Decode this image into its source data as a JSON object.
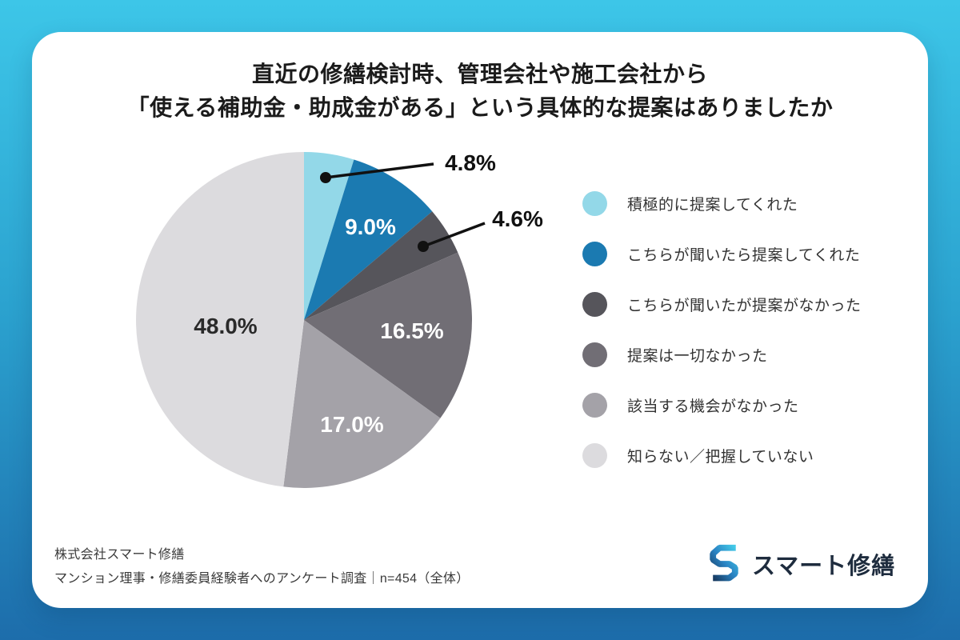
{
  "header": {
    "title_line1": "直近の修繕検討時、管理会社や施工会社から",
    "title_line2": "「使える補助金・助成金がある」という具体的な提案はありましたか"
  },
  "chart_data": {
    "type": "pie",
    "title": "直近の修繕検討時、管理会社や施工会社から「使える補助金・助成金がある」という具体的な提案はありましたか",
    "unit": "%",
    "start_angle_deg": 0,
    "direction": "clockwise",
    "legend_position": "right",
    "slices": [
      {
        "label": "積極的に提案してくれた",
        "value": 4.8,
        "color": "#93d8e8",
        "label_style": "callout-dark"
      },
      {
        "label": "こちらが聞いたら提案してくれた",
        "value": 9.0,
        "color": "#1b7ab1",
        "label_style": "inside-white"
      },
      {
        "label": "こちらが聞いたが提案がなかった",
        "value": 4.6,
        "color": "#56555b",
        "label_style": "callout-dark"
      },
      {
        "label": "提案は一切なかった",
        "value": 16.5,
        "color": "#716e75",
        "label_style": "inside-white"
      },
      {
        "label": "該当する機会がなかった",
        "value": 17.0,
        "color": "#a4a2a8",
        "label_style": "inside-white"
      },
      {
        "label": "知らない／把握していない",
        "value": 48.0,
        "color": "#dcdbde",
        "label_style": "inside-dark"
      }
    ]
  },
  "footer": {
    "source_line1": "株式会社スマート修繕",
    "source_line2": "マンション理事・修繕委員経験者へのアンケート調査｜n=454（全体）",
    "logo_text": "スマート修繕",
    "logo_icon": "hexagonal-s-mark"
  },
  "colors": {
    "background_top": "#3dc6e8",
    "background_bottom": "#1d6dab",
    "card": "#ffffff",
    "title_text": "#1b1b1b",
    "inside_label_light": "#ffffff",
    "inside_label_dark": "#2a2a2a",
    "callout_label": "#111111",
    "legend_text": "#333333",
    "source_text": "#3a3a3a",
    "logo_text": "#1e2c3e"
  }
}
